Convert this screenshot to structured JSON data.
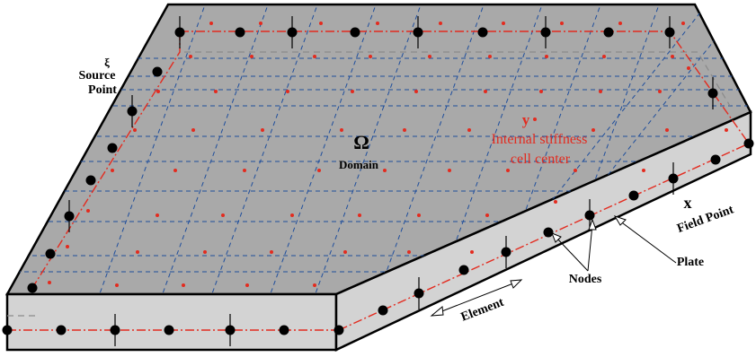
{
  "labels": {
    "source_symbol": "ξ",
    "source_point": [
      "Source",
      "Point"
    ],
    "omega": "Ω",
    "domain": "Domain",
    "y_symbol": "y",
    "internal_cell": [
      "Internal stiffness",
      "cell center"
    ],
    "x_symbol": "x",
    "field_point": "Field Point",
    "plate": "Plate",
    "nodes": "Nodes",
    "element": "Element"
  },
  "colors": {
    "top_face": "#a9a9a9",
    "side_face": "#d3d3d3",
    "edge": "#000000",
    "mesh_line": "#1f4e9c",
    "boundary_line": "#e32b1f",
    "cell_center": "#e32b1f",
    "node": "#000000",
    "annotation_red": "#e32b1f"
  }
}
